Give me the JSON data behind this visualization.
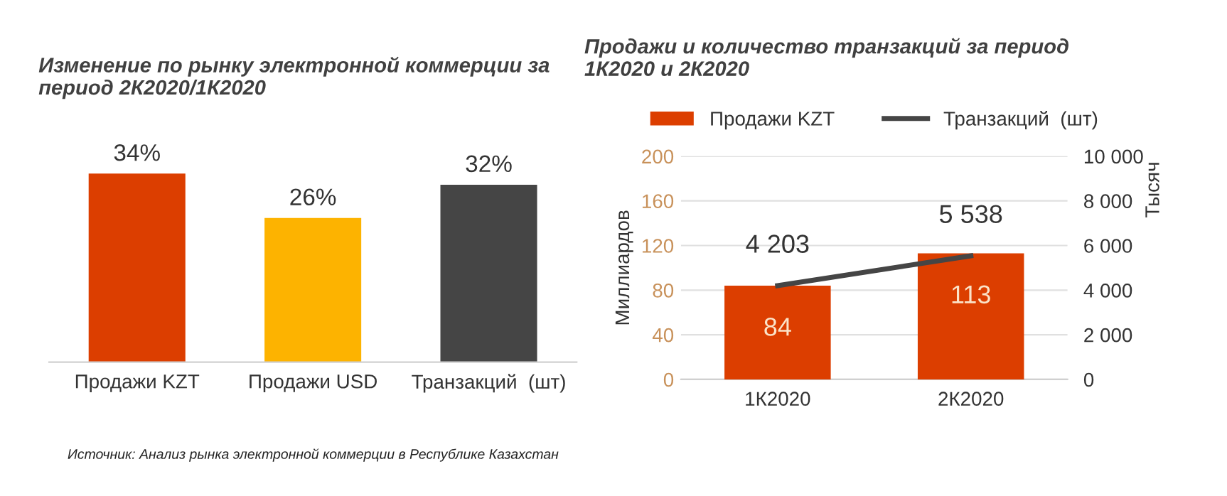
{
  "chart_data": [
    {
      "type": "bar",
      "title": "Изменение по рынку электронной коммерции за\nпериод 2К2020/1К2020",
      "categories": [
        "Продажи KZT",
        "Продажи USD",
        "Транзакций  (шт)"
      ],
      "values": [
        34,
        26,
        32
      ],
      "colors": [
        "#dc3e00",
        "#fdb300",
        "#454545"
      ],
      "value_labels": [
        "34%",
        "26%",
        "32%"
      ],
      "annotations": [
        "Источник: Анализ рынка электронной коммерции в Республике Казахстан"
      ]
    },
    {
      "type": "bar",
      "title": "Продажи и количество транзакций за период\n1К2020 и 2К2020",
      "categories": [
        "1К2020",
        "2К2020"
      ],
      "ylabel": "Миллиардов",
      "y2label": "Тысяч",
      "ylim": [
        0,
        200
      ],
      "yticks": [
        0,
        40,
        80,
        120,
        160,
        200
      ],
      "y2lim": [
        0,
        10000
      ],
      "y2ticks": [
        0,
        {
          "value": 2000,
          "label": "2 000"
        },
        {
          "value": 4000,
          "label": "4 000"
        },
        {
          "value": 6000,
          "label": "6 000"
        },
        {
          "value": 8000,
          "label": "8 000"
        },
        {
          "value": 10000,
          "label": "10 000"
        }
      ],
      "grid": "y",
      "legend": "top",
      "series": [
        {
          "name": "Продажи KZT",
          "type": "bar",
          "color": "#dc3e00",
          "values": [
            84,
            113
          ],
          "data_labels": true
        },
        {
          "name": "Транзакций  (шт)",
          "type": "line",
          "axis": "y2",
          "color": "#454545",
          "values": [
            4203,
            5538
          ],
          "value_labels": [
            "4 203",
            "5 538"
          ]
        }
      ]
    }
  ]
}
